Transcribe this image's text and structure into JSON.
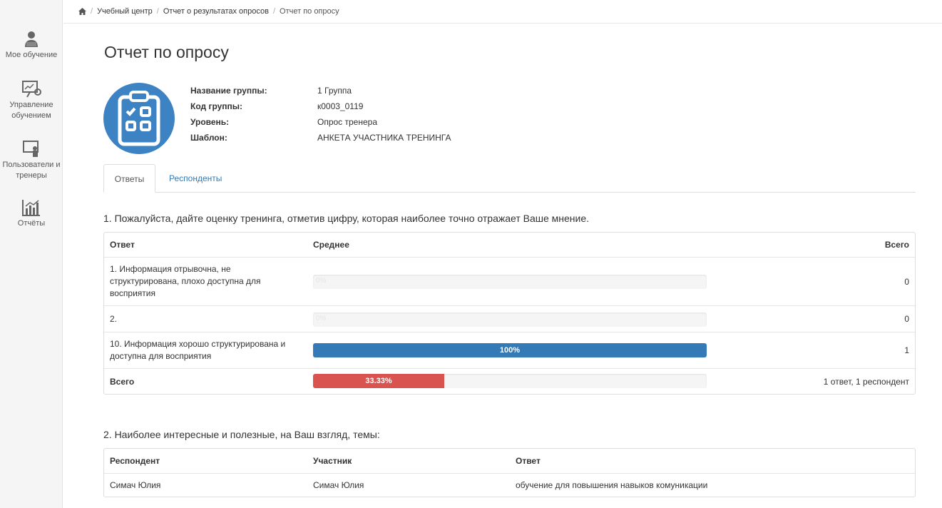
{
  "sidebar": {
    "items": [
      {
        "label": "Мое обучение",
        "icon": "user-reading-icon"
      },
      {
        "label": "Управление обучением",
        "icon": "presentation-settings-icon"
      },
      {
        "label": "Пользователи и тренеры",
        "icon": "trainer-board-icon"
      },
      {
        "label": "Отчёты",
        "icon": "bar-chart-icon"
      }
    ]
  },
  "breadcrumb": {
    "items": [
      "Учебный центр",
      "Отчет о результатах опросов",
      "Отчет по опросу"
    ]
  },
  "page_title": "Отчет по опросу",
  "info": {
    "group_name_label": "Название группы:",
    "group_name": "1 Группа",
    "group_code_label": "Код группы:",
    "group_code": "к0003_0119",
    "level_label": "Уровень:",
    "level": "Опрос тренера",
    "template_label": "Шаблон:",
    "template": "АНКЕТА УЧАСТНИКА ТРЕНИНГА"
  },
  "tabs": {
    "answers": "Ответы",
    "respondents": "Респонденты"
  },
  "q1": {
    "title": "1. Пожалуйста, дайте оценку тренинга, отметив цифру, которая наиболее точно отражает Ваше мнение.",
    "headers": {
      "answer": "Ответ",
      "average": "Среднее",
      "total": "Всего"
    },
    "rows": [
      {
        "answer_line1": "1. Информация отрывочна, не",
        "answer_line2": "структурирована, плохо доступна для",
        "answer_line3": "восприятия",
        "percent": 0,
        "percent_label": "0%",
        "total": "0"
      },
      {
        "answer": "2.",
        "percent": 0,
        "percent_label": "0%",
        "total": "0"
      },
      {
        "answer_line1": "10. Информация хорошо структурирована и",
        "answer_line2": "доступна для восприятия",
        "percent": 100,
        "percent_label": "100%",
        "total": "1"
      }
    ],
    "summary": {
      "label": "Всего",
      "percent": 33.33,
      "percent_label": "33.33%",
      "total": "1 ответ, 1 респондент"
    }
  },
  "q2": {
    "title": "2. Наиболее интересные и полезные, на Ваш взгляд, темы:",
    "headers": {
      "respondent": "Респондент",
      "participant": "Участник",
      "answer": "Ответ"
    },
    "rows": [
      {
        "respondent": "Симач Юлия",
        "participant": "Симач Юлия",
        "answer": "обучение для повышения навыков комуникации"
      }
    ]
  },
  "colors": {
    "primary": "#337ab7",
    "danger": "#d9534f",
    "icon_bg": "#3d83c4"
  }
}
